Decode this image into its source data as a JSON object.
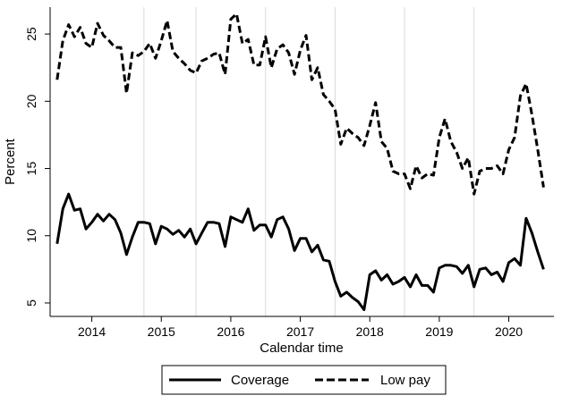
{
  "chart_data": {
    "type": "line",
    "xlabel": "Calendar time",
    "ylabel": "Percent",
    "xlim": [
      2013.4,
      2020.65
    ],
    "ylim": [
      4,
      27
    ],
    "xticks": [
      2014,
      2015,
      2016,
      2017,
      2018,
      2019,
      2020
    ],
    "xtick_labels": [
      "2014",
      "2015",
      "2016",
      "2017",
      "2018",
      "2019",
      "2020"
    ],
    "yticks": [
      5,
      10,
      15,
      20,
      25
    ],
    "ytick_labels": [
      "5",
      "10",
      "15",
      "20",
      "25"
    ],
    "vertical_reference_lines": [
      2014.75,
      2015.5,
      2016.5,
      2017.5,
      2018.5,
      2019.5
    ],
    "grid": false,
    "legend_position": "bottom",
    "x": [
      2013.5,
      2013.583,
      2013.667,
      2013.75,
      2013.833,
      2013.917,
      2014.0,
      2014.083,
      2014.167,
      2014.25,
      2014.333,
      2014.417,
      2014.5,
      2014.583,
      2014.667,
      2014.75,
      2014.833,
      2014.917,
      2015.0,
      2015.083,
      2015.167,
      2015.25,
      2015.333,
      2015.417,
      2015.5,
      2015.583,
      2015.667,
      2015.75,
      2015.833,
      2015.917,
      2016.0,
      2016.083,
      2016.167,
      2016.25,
      2016.333,
      2016.417,
      2016.5,
      2016.583,
      2016.667,
      2016.75,
      2016.833,
      2016.917,
      2017.0,
      2017.083,
      2017.167,
      2017.25,
      2017.333,
      2017.417,
      2017.5,
      2017.583,
      2017.667,
      2017.75,
      2017.833,
      2017.917,
      2018.0,
      2018.083,
      2018.167,
      2018.25,
      2018.333,
      2018.417,
      2018.5,
      2018.583,
      2018.667,
      2018.75,
      2018.833,
      2018.917,
      2019.0,
      2019.083,
      2019.167,
      2019.25,
      2019.333,
      2019.417,
      2019.5,
      2019.583,
      2019.667,
      2019.75,
      2019.833,
      2019.917,
      2020.0,
      2020.083,
      2020.167,
      2020.25,
      2020.333,
      2020.417,
      2020.5
    ],
    "series": [
      {
        "name": "Coverage",
        "style": "solid",
        "color": "#000000",
        "values": [
          9.4,
          12.0,
          13.1,
          11.9,
          12.0,
          10.5,
          11.0,
          11.6,
          11.1,
          11.6,
          11.2,
          10.2,
          8.6,
          9.9,
          11.0,
          11.0,
          10.9,
          9.4,
          10.7,
          10.5,
          10.1,
          10.4,
          9.9,
          10.5,
          9.4,
          10.2,
          11.0,
          11.0,
          10.9,
          9.2,
          11.4,
          11.2,
          11.0,
          12.0,
          10.4,
          10.8,
          10.8,
          9.9,
          11.2,
          11.4,
          10.5,
          8.9,
          9.8,
          9.8,
          8.8,
          9.3,
          8.2,
          8.1,
          6.6,
          5.5,
          5.8,
          5.4,
          5.1,
          4.5,
          7.1,
          7.4,
          6.7,
          7.1,
          6.4,
          6.6,
          6.9,
          6.2,
          7.1,
          6.3,
          6.3,
          5.8,
          7.6,
          7.8,
          7.8,
          7.7,
          7.2,
          7.8,
          6.2,
          7.5,
          7.6,
          7.1,
          7.3,
          6.6,
          8.0,
          8.3,
          7.8,
          11.3,
          10.2,
          8.8,
          7.5
        ]
      },
      {
        "name": "Low pay",
        "style": "dashed",
        "color": "#000000",
        "values": [
          21.6,
          24.5,
          25.7,
          24.8,
          25.5,
          24.3,
          24.0,
          25.8,
          24.9,
          24.5,
          24.0,
          24.0,
          20.6,
          23.6,
          23.4,
          23.7,
          24.3,
          23.2,
          24.5,
          26.0,
          23.7,
          23.2,
          22.8,
          22.3,
          22.1,
          23.0,
          23.2,
          23.5,
          23.6,
          22.0,
          26.1,
          26.5,
          24.3,
          24.6,
          22.7,
          22.7,
          24.8,
          22.5,
          23.9,
          24.2,
          23.6,
          22.0,
          23.8,
          24.9,
          21.6,
          22.5,
          20.5,
          20.0,
          19.4,
          16.8,
          18.0,
          17.6,
          17.3,
          16.7,
          18.2,
          19.9,
          17.0,
          16.5,
          14.8,
          14.6,
          14.6,
          13.5,
          15.2,
          14.3,
          14.6,
          14.5,
          17.3,
          18.7,
          17.0,
          16.2,
          15.0,
          15.8,
          13.1,
          14.8,
          15.0,
          15.0,
          15.2,
          14.6,
          16.4,
          17.3,
          20.4,
          21.3,
          19.0,
          16.4,
          13.6
        ]
      }
    ]
  }
}
